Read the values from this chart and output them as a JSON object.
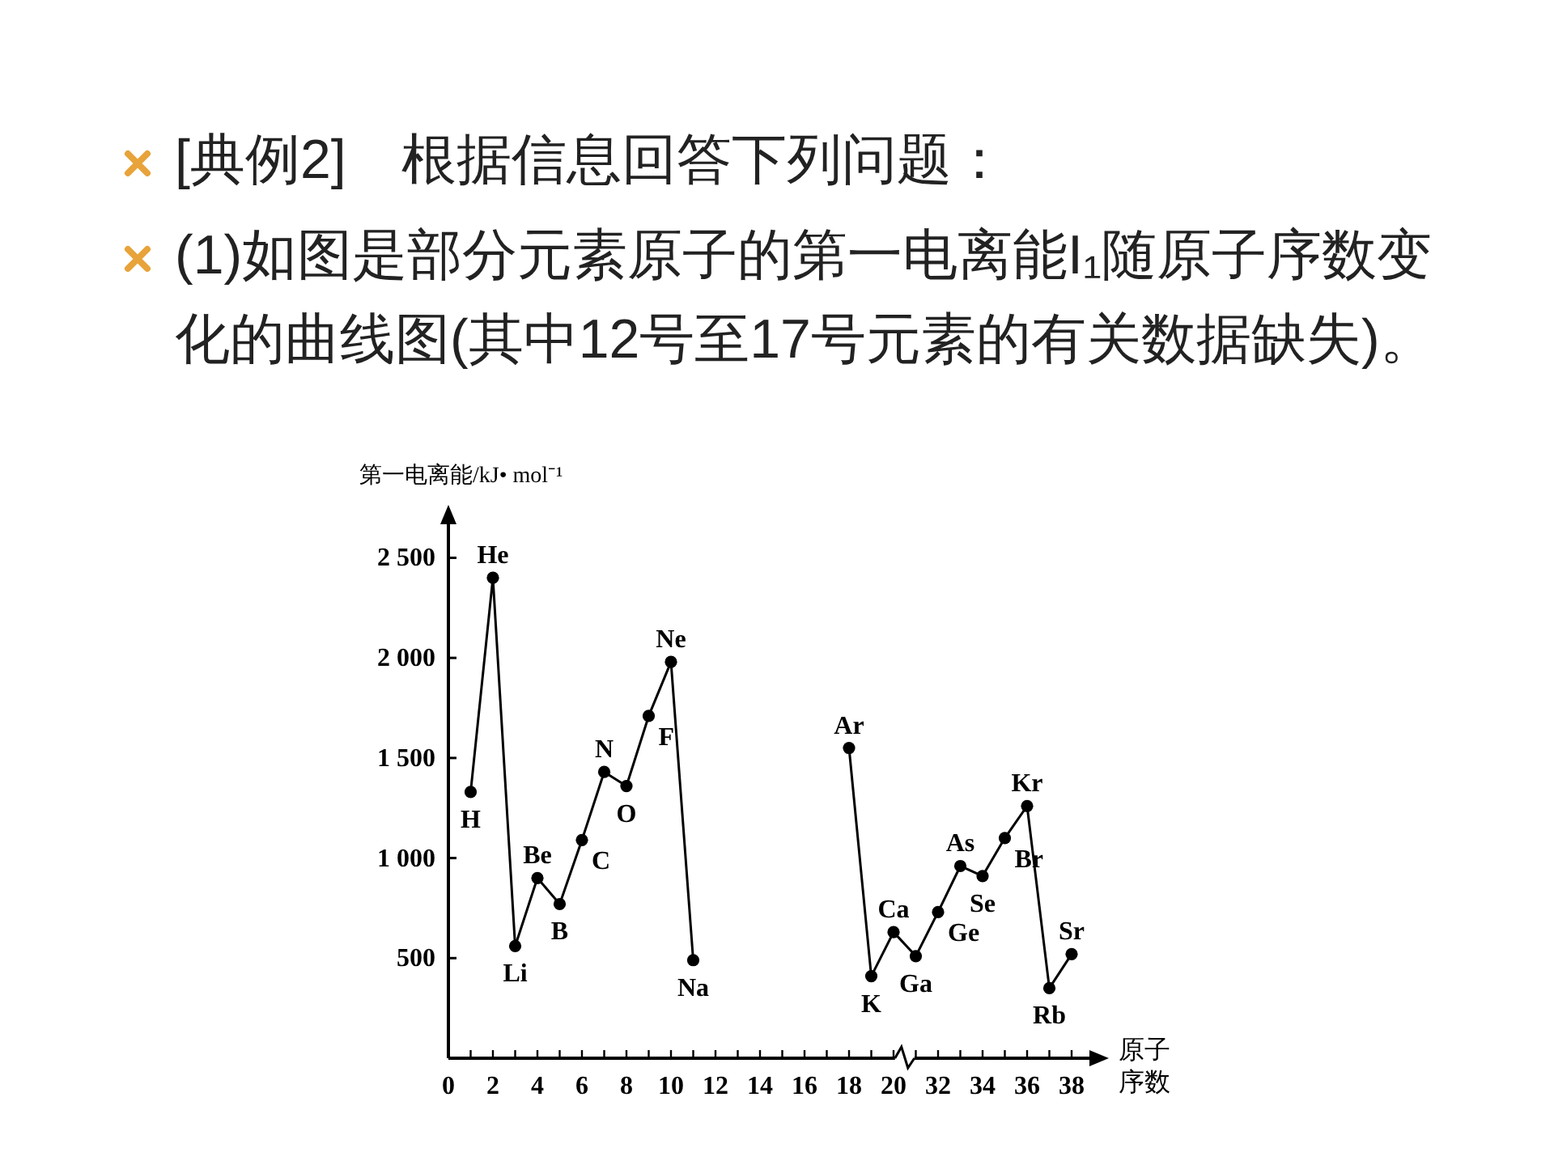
{
  "chart_data": {
    "type": "line",
    "title": "[典例2]　根据信息回答下列问题：",
    "subtitle": "(1)如图是部分元素原子的第一电离能I₁随原子序数变化的曲线图(其中12号至17号元素的有关数据缺失)。",
    "ylabel": "第一电离能/kJ• mol⁻¹",
    "xlabel": "原子序数",
    "marker": "circle",
    "categories": [
      "0",
      null,
      "2",
      null,
      "4",
      null,
      "6",
      null,
      "8",
      null,
      "10",
      null,
      "12",
      null,
      "14",
      null,
      "16",
      null,
      "18",
      null,
      "20",
      null,
      "32",
      null,
      "34",
      null,
      "36",
      null,
      "38"
    ],
    "ylim": [
      0,
      2700
    ],
    "yticks": [
      {
        "value": 500,
        "label": "500"
      },
      {
        "value": 1000,
        "label": "1 000"
      },
      {
        "value": 1500,
        "label": "1 500"
      },
      {
        "value": 2000,
        "label": "2 000"
      },
      {
        "value": 2500,
        "label": "2 500"
      }
    ],
    "series": [
      {
        "color": "#000000",
        "values": [
          null,
          1330,
          2400,
          560,
          900,
          770,
          1090,
          1430,
          1360,
          1710,
          1980,
          490,
          null,
          null,
          null,
          null,
          null,
          null,
          1550,
          410,
          630,
          510,
          730,
          960,
          910,
          1100,
          1260,
          350,
          520
        ]
      }
    ],
    "annotations": [
      "H",
      "He",
      "Li",
      "Be",
      "B",
      "C",
      "N",
      "O",
      "F",
      "Ne",
      "Na",
      "Ar",
      "K",
      "Ca",
      "Ga",
      "Ge",
      "As",
      "Se",
      "Br",
      "Kr",
      "Rb",
      "Sr"
    ]
  }
}
